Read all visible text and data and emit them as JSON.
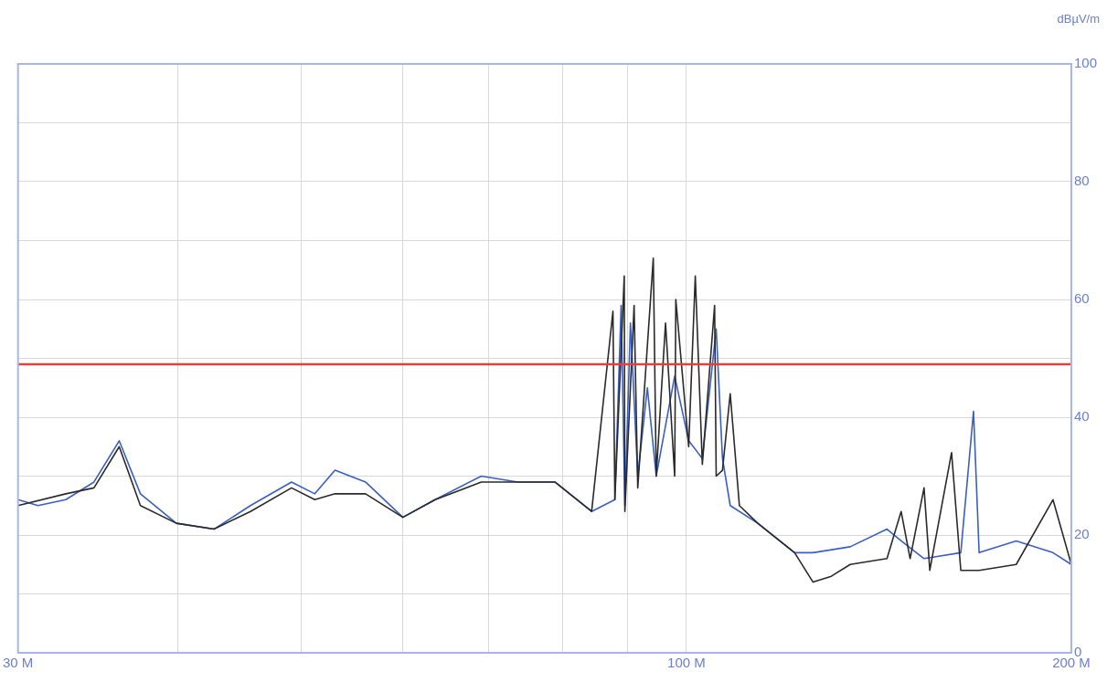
{
  "chart_data": {
    "type": "line",
    "ylabel": "dBµV/m",
    "log": "x",
    "grid": true,
    "legend": false,
    "marker": "none",
    "line_style": "solid",
    "xlim": [
      30,
      200
    ],
    "ylim": [
      0,
      100
    ],
    "xticks": [
      {
        "value": 30,
        "label": "30 M"
      },
      {
        "value": 40,
        "label": null
      },
      {
        "value": 50,
        "label": null
      },
      {
        "value": 60,
        "label": null
      },
      {
        "value": 70,
        "label": null
      },
      {
        "value": 80,
        "label": null
      },
      {
        "value": 90,
        "label": null
      },
      {
        "value": 100,
        "label": "100 M"
      },
      {
        "value": 200,
        "label": "200 M"
      }
    ],
    "yticks": [
      0,
      {
        "value": 10,
        "label": null
      },
      20,
      {
        "value": 30,
        "label": null
      },
      40,
      {
        "value": 50,
        "label": null
      },
      60,
      {
        "value": 70,
        "label": null
      },
      80,
      {
        "value": 90,
        "label": null
      },
      100
    ],
    "ref_lines": [
      {
        "axis": "y",
        "value": 49,
        "color": "#e0413a"
      }
    ],
    "series": [
      {
        "color": "#3a5fc4",
        "x": [
          30,
          31.1,
          32.7,
          34.4,
          36.0,
          37.4,
          39.9,
          42.7,
          45.6,
          49.1,
          51.2,
          53.1,
          56.1,
          60,
          63.6,
          69.1,
          73.8,
          78.9,
          84.3,
          87.9,
          88.9,
          89.5,
          90.4,
          91.6,
          93.2,
          94.7,
          97.9,
          100.4,
          102.9,
          105.5,
          106.7,
          108.2,
          113.7,
          121.5,
          125.6,
          134.3,
          143.5,
          147.2,
          153.4,
          163.9,
          167.7,
          169.4,
          181.1,
          193.5,
          200
        ],
        "values": [
          26,
          25,
          26,
          29,
          36,
          27,
          22,
          21,
          25,
          29,
          27,
          31,
          29,
          23,
          26,
          30,
          29,
          29,
          24,
          26,
          59,
          25,
          56,
          30,
          45,
          30,
          47,
          36,
          33,
          55,
          33,
          25,
          22,
          17,
          17,
          18,
          21,
          19,
          16,
          17,
          41,
          17,
          19,
          17,
          15
        ]
      },
      {
        "color": "#2a2a2a",
        "x": [
          30,
          32.7,
          34.4,
          36.0,
          37.4,
          39.9,
          42.7,
          45.6,
          49.1,
          51.2,
          53.1,
          56.1,
          60,
          63.6,
          69.1,
          73.8,
          78.9,
          84.3,
          87.6,
          87.9,
          89.4,
          89.5,
          91.0,
          91.6,
          94.2,
          94.7,
          96.3,
          97.9,
          98.1,
          100.4,
          101.6,
          102.9,
          105.2,
          105.5,
          106.7,
          108.2,
          110,
          113.7,
          121.5,
          125.6,
          129.8,
          134.3,
          143.5,
          147.2,
          149.6,
          153.4,
          155,
          161.2,
          163.9,
          169.4,
          181.1,
          193.5,
          200
        ],
        "values": [
          25,
          27,
          28,
          35,
          25,
          22,
          21,
          24,
          28,
          26,
          27,
          27,
          23,
          26,
          29,
          29,
          29,
          24,
          58,
          26,
          64,
          24,
          59,
          28,
          67,
          30,
          56,
          30,
          60,
          35,
          64,
          32,
          59,
          30,
          31,
          44,
          25,
          22,
          17,
          12,
          13,
          15,
          16,
          24,
          16,
          28,
          14,
          34,
          14,
          14,
          15,
          26,
          15
        ]
      }
    ]
  }
}
